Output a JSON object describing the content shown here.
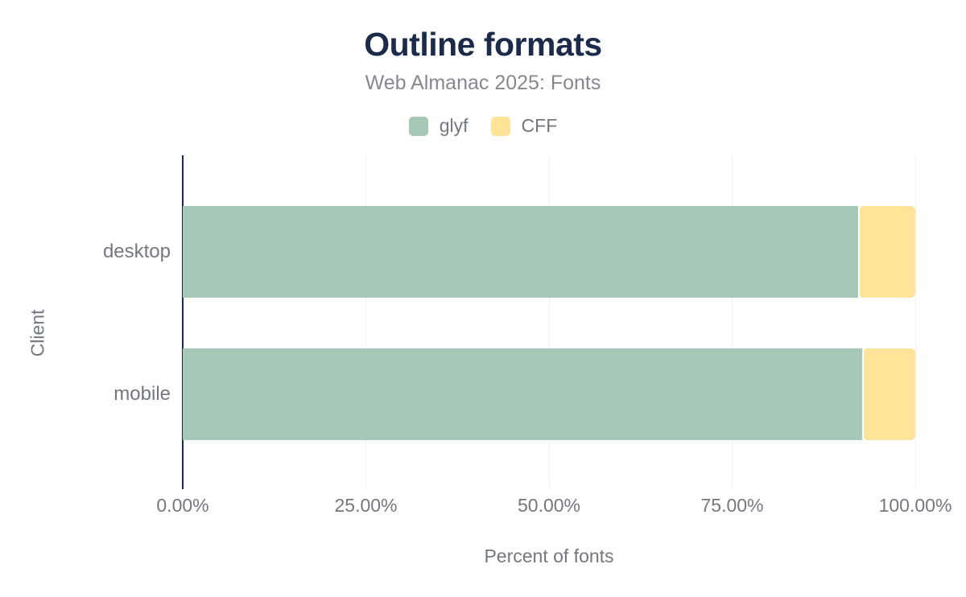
{
  "chart_data": {
    "type": "bar",
    "orientation": "horizontal",
    "stacked": true,
    "title": "Outline formats",
    "subtitle": "Web Almanac 2025: Fonts",
    "categories": [
      "desktop",
      "mobile"
    ],
    "series": [
      {
        "name": "glyf",
        "color": "#a6c9b7",
        "values": [
          92.2,
          92.7
        ]
      },
      {
        "name": "CFF",
        "color": "#fee399",
        "values": [
          7.8,
          7.3
        ]
      }
    ],
    "xlabel": "Percent of fonts",
    "ylabel": "Client",
    "xlim": [
      0,
      100
    ],
    "xticks": [
      {
        "value": 0,
        "label": "0.00%"
      },
      {
        "value": 25,
        "label": "25.00%"
      },
      {
        "value": 50,
        "label": "50.00%"
      },
      {
        "value": 75,
        "label": "75.00%"
      },
      {
        "value": 100,
        "label": "100.00%"
      }
    ],
    "grid": "vertical",
    "legend_position": "top",
    "colors": {
      "title": "#1b2b49",
      "axis": "#1b2b49",
      "subtitle_gray": "#85898f",
      "label_gray": "#73787f",
      "gridline": "#f0f0f1",
      "background": "#ffffff"
    }
  }
}
